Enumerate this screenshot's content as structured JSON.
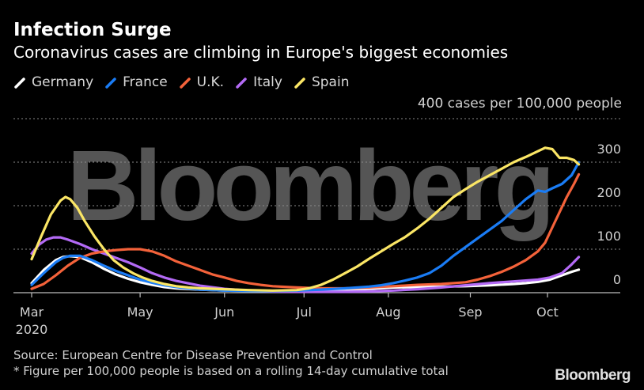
{
  "header": {
    "title": "Infection Surge",
    "subtitle": "Coronavirus cases are climbing in Europe's biggest economies"
  },
  "footer": {
    "source": "Source: European Centre for Disease Prevention and Control",
    "note": "* Figure per 100,000 people is based on a rolling 14-day cumulative total",
    "brand": "Bloomberg"
  },
  "watermark": "Bloomberg",
  "chart_data": {
    "type": "line",
    "title": "Infection Surge",
    "subtitle": "Coronavirus cases are climbing in Europe's biggest economies",
    "xlabel": "",
    "ylabel": "400 cases per 100,000 people",
    "unit_label": "400 cases per 100,000 people",
    "x_unit": "days since 2020-03-01",
    "xlim": [
      0,
      230
    ],
    "ylim": [
      0,
      400
    ],
    "grid": true,
    "legend_position": "top-left",
    "y_ticks": [
      {
        "value": 0,
        "label": "0"
      },
      {
        "value": 100,
        "label": "100"
      },
      {
        "value": 200,
        "label": "200"
      },
      {
        "value": 300,
        "label": "300"
      },
      {
        "value": 400,
        "label": "400 cases per 100,000 people"
      }
    ],
    "x_ticks": [
      {
        "day": 0,
        "label": "Mar",
        "sublabel": "2020"
      },
      {
        "day": 45,
        "label": "May",
        "sublabel": ""
      },
      {
        "day": 80,
        "label": "Jun",
        "sublabel": ""
      },
      {
        "day": 113,
        "label": "Jul",
        "sublabel": ""
      },
      {
        "day": 148,
        "label": "Aug",
        "sublabel": ""
      },
      {
        "day": 182,
        "label": "Sep",
        "sublabel": ""
      },
      {
        "day": 214,
        "label": "Oct",
        "sublabel": ""
      }
    ],
    "series": [
      {
        "name": "Spain",
        "color": "#fbe665",
        "x": [
          0,
          4,
          8,
          12,
          14,
          16,
          19,
          22,
          26,
          30,
          34,
          38,
          42,
          46,
          50,
          55,
          60,
          65,
          70,
          80,
          90,
          100,
          110,
          115,
          120,
          125,
          130,
          135,
          140,
          145,
          150,
          155,
          160,
          165,
          170,
          175,
          180,
          185,
          190,
          195,
          200,
          205,
          210,
          213,
          216,
          219,
          222,
          225,
          227
        ],
        "y": [
          77,
          130,
          180,
          212,
          220,
          215,
          195,
          165,
          130,
          100,
          75,
          58,
          45,
          35,
          27,
          20,
          15,
          12,
          10,
          8,
          6,
          5,
          6,
          10,
          18,
          30,
          45,
          60,
          78,
          95,
          112,
          128,
          148,
          170,
          195,
          220,
          238,
          255,
          270,
          285,
          300,
          312,
          325,
          333,
          330,
          310,
          310,
          305,
          295
        ]
      },
      {
        "name": "Italy",
        "color": "#b36af5",
        "x": [
          0,
          3,
          6,
          9,
          12,
          15,
          20,
          25,
          30,
          35,
          40,
          45,
          50,
          55,
          60,
          70,
          80,
          90,
          100,
          110,
          120,
          130,
          140,
          150,
          160,
          170,
          180,
          190,
          200,
          210,
          215,
          220,
          224,
          227
        ],
        "y": [
          90,
          110,
          122,
          127,
          127,
          122,
          112,
          100,
          90,
          80,
          70,
          58,
          45,
          35,
          27,
          16,
          9,
          5,
          3,
          2,
          2,
          2,
          3,
          5,
          8,
          12,
          17,
          22,
          26,
          30,
          35,
          45,
          65,
          82
        ]
      },
      {
        "name": "U.K.",
        "color": "#f4623a",
        "x": [
          0,
          5,
          10,
          15,
          20,
          25,
          30,
          35,
          40,
          45,
          50,
          55,
          60,
          65,
          70,
          75,
          80,
          85,
          90,
          95,
          100,
          110,
          120,
          130,
          140,
          150,
          160,
          170,
          180,
          185,
          190,
          195,
          200,
          205,
          210,
          213,
          216,
          219,
          222,
          225,
          227
        ],
        "y": [
          9,
          20,
          40,
          62,
          80,
          90,
          95,
          98,
          100,
          100,
          95,
          85,
          72,
          62,
          52,
          42,
          35,
          27,
          22,
          18,
          15,
          12,
          10,
          10,
          12,
          15,
          18,
          20,
          24,
          30,
          38,
          48,
          60,
          75,
          95,
          115,
          150,
          185,
          220,
          250,
          272
        ]
      },
      {
        "name": "France",
        "color": "#1a7cf5",
        "x": [
          0,
          5,
          10,
          13,
          16,
          20,
          25,
          30,
          35,
          40,
          45,
          50,
          55,
          60,
          65,
          70,
          80,
          90,
          100,
          110,
          120,
          130,
          140,
          145,
          150,
          155,
          160,
          165,
          170,
          175,
          180,
          185,
          190,
          195,
          200,
          205,
          210,
          213,
          216,
          220,
          224,
          227
        ],
        "y": [
          18,
          45,
          70,
          80,
          85,
          85,
          75,
          62,
          50,
          40,
          30,
          23,
          17,
          13,
          10,
          7,
          5,
          4,
          4,
          5,
          7,
          10,
          14,
          17,
          22,
          28,
          35,
          45,
          62,
          85,
          105,
          125,
          145,
          165,
          190,
          215,
          235,
          232,
          240,
          250,
          270,
          300
        ]
      },
      {
        "name": "Germany",
        "color": "#ffffff",
        "x": [
          0,
          5,
          10,
          13,
          16,
          20,
          25,
          30,
          35,
          40,
          45,
          50,
          55,
          60,
          70,
          80,
          90,
          100,
          110,
          120,
          130,
          140,
          150,
          160,
          170,
          180,
          190,
          200,
          205,
          210,
          215,
          220,
          224,
          227
        ],
        "y": [
          22,
          52,
          75,
          82,
          84,
          82,
          70,
          55,
          42,
          32,
          24,
          18,
          13,
          10,
          7,
          5,
          4,
          3,
          3,
          4,
          6,
          9,
          12,
          13,
          14,
          15,
          17,
          20,
          22,
          25,
          30,
          40,
          48,
          53
        ]
      }
    ],
    "legend_order": [
      "Germany",
      "France",
      "U.K.",
      "Italy",
      "Spain"
    ]
  }
}
